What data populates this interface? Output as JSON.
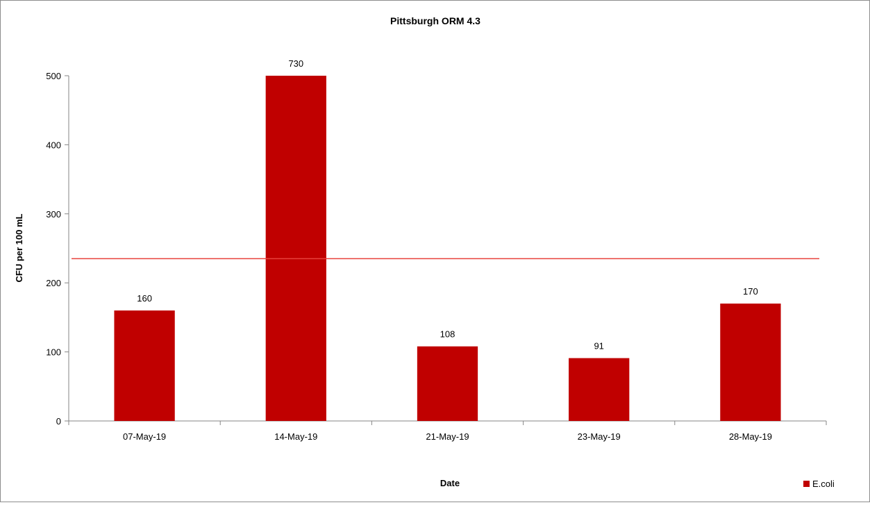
{
  "chart_data": {
    "type": "bar",
    "title": "Pittsburgh ORM 4.3",
    "xlabel": "Date",
    "ylabel": "CFU per 100 mL",
    "categories": [
      "07-May-19",
      "14-May-19",
      "21-May-19",
      "23-May-19",
      "28-May-19"
    ],
    "series": [
      {
        "name": "E.coli",
        "values": [
          160,
          730,
          108,
          91,
          170
        ],
        "data_labels": [
          "160",
          "730",
          "108",
          "91",
          "170"
        ],
        "color": "#c00000"
      }
    ],
    "ylim": [
      0,
      500
    ],
    "yticks": [
      0,
      100,
      200,
      300,
      400,
      500
    ],
    "reference_line": {
      "value": 235,
      "color": "#e8413c"
    },
    "grid": false,
    "legend_position": "bottom-right"
  }
}
